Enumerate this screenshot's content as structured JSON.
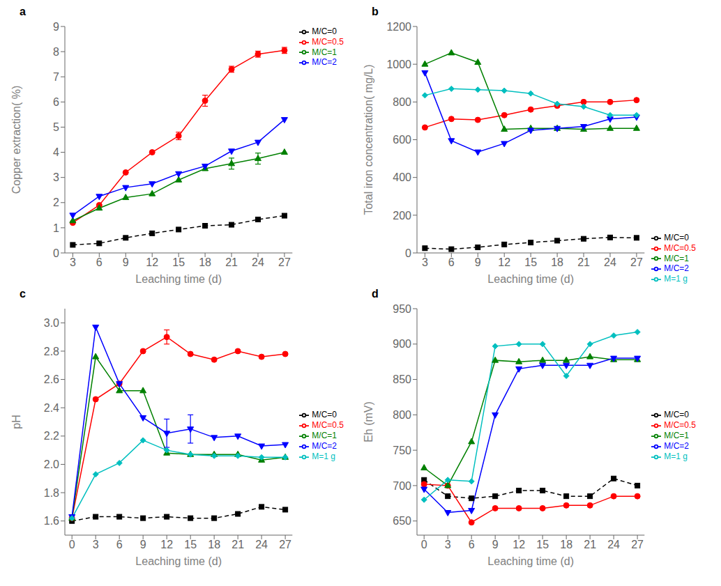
{
  "chart_data": [
    {
      "type": "line",
      "title": "a",
      "xlabel": "Leaching time (d)",
      "ylabel": "Copper extraction( %)",
      "x": [
        3,
        6,
        9,
        12,
        15,
        18,
        21,
        24,
        27
      ],
      "xlim": [
        2.1,
        27.9
      ],
      "xticks": [
        3,
        6,
        9,
        12,
        15,
        18,
        21,
        24,
        27
      ],
      "ylim": [
        0,
        9
      ],
      "yticks": [
        0,
        1,
        2,
        3,
        4,
        5,
        6,
        7,
        8,
        9
      ],
      "legend": "upper left",
      "series": [
        {
          "name": "M/C=0",
          "values": [
            0.32,
            0.38,
            0.6,
            0.78,
            0.93,
            1.08,
            1.12,
            1.33,
            1.48
          ],
          "color": "black",
          "marker": "square",
          "line_style": "dashed"
        },
        {
          "name": "M/C=0.5",
          "values": [
            1.2,
            1.9,
            3.2,
            4.0,
            4.65,
            6.05,
            7.3,
            7.9,
            8.05
          ],
          "error": [
            0,
            0,
            0,
            0,
            0.15,
            0.22,
            0.12,
            0.12,
            0.12
          ],
          "color": "red",
          "marker": "circle",
          "line_style": "solid"
        },
        {
          "name": "M/C=1",
          "values": [
            1.28,
            1.78,
            2.2,
            2.35,
            2.9,
            3.35,
            3.55,
            3.75,
            4.0
          ],
          "error": [
            0,
            0,
            0,
            0,
            0,
            0,
            0.22,
            0.22,
            0
          ],
          "color": "green",
          "marker": "triangle-up",
          "line_style": "solid"
        },
        {
          "name": "M/C=2",
          "values": [
            1.5,
            2.25,
            2.6,
            2.75,
            3.15,
            3.45,
            4.05,
            4.4,
            5.3
          ],
          "color": "blue",
          "marker": "triangle-down",
          "line_style": "solid"
        }
      ]
    },
    {
      "type": "line",
      "title": "b",
      "xlabel": "Leaching time (d)",
      "ylabel": "Total iron concentration( mg/L)",
      "x": [
        3,
        6,
        9,
        12,
        15,
        18,
        21,
        24,
        27
      ],
      "xlim": [
        2.1,
        27.9
      ],
      "xticks": [
        3,
        6,
        9,
        12,
        15,
        18,
        21,
        24,
        27
      ],
      "ylim": [
        0,
        1200
      ],
      "yticks": [
        0,
        200,
        400,
        600,
        800,
        1000,
        1200
      ],
      "legend": "lower right",
      "series": [
        {
          "name": "M/C=0",
          "values": [
            25,
            20,
            30,
            45,
            55,
            65,
            75,
            82,
            80
          ],
          "color": "black",
          "marker": "square",
          "line_style": "dashed"
        },
        {
          "name": "M/C=0.5",
          "values": [
            665,
            710,
            705,
            730,
            760,
            780,
            800,
            800,
            810
          ],
          "color": "red",
          "marker": "circle",
          "line_style": "solid"
        },
        {
          "name": "M/C=1",
          "values": [
            1000,
            1060,
            1010,
            655,
            660,
            660,
            655,
            660,
            660
          ],
          "color": "green",
          "marker": "triangle-up",
          "line_style": "solid"
        },
        {
          "name": "M/C=2",
          "values": [
            955,
            595,
            535,
            580,
            650,
            660,
            670,
            710,
            720
          ],
          "color": "blue",
          "marker": "triangle-down",
          "line_style": "solid"
        },
        {
          "name": "M=1 g",
          "values": [
            835,
            870,
            865,
            860,
            845,
            790,
            775,
            730,
            730
          ],
          "color": "#00BFBF",
          "marker": "diamond",
          "line_style": "solid"
        }
      ]
    },
    {
      "type": "line",
      "title": "c",
      "xlabel": "Leaching time (d)",
      "ylabel": "pH",
      "x": [
        0,
        3,
        6,
        9,
        12,
        15,
        18,
        21,
        24,
        27
      ],
      "xlim": [
        -0.9,
        27.9
      ],
      "xticks": [
        0,
        3,
        6,
        9,
        12,
        15,
        18,
        21,
        24,
        27
      ],
      "ylim": [
        1.5,
        3.1
      ],
      "yticks": [
        1.6,
        1.8,
        {
          "value": 2.0,
          "label": "2.0"
        },
        2.2,
        2.4,
        2.6,
        2.8,
        {
          "value": 3.0,
          "label": "3.0"
        }
      ],
      "legend": "center right",
      "series": [
        {
          "name": "M/C=0",
          "values": [
            1.6,
            1.63,
            1.63,
            1.62,
            1.63,
            1.62,
            1.62,
            1.65,
            1.7,
            1.68
          ],
          "color": "black",
          "marker": "square",
          "line_style": "dashed"
        },
        {
          "name": "M/C=0.5",
          "values": [
            1.62,
            2.46,
            2.57,
            2.8,
            2.9,
            2.78,
            2.74,
            2.8,
            2.76,
            2.78
          ],
          "error": [
            0,
            0,
            0,
            0,
            0.05,
            0,
            0,
            0,
            0,
            0
          ],
          "color": "red",
          "marker": "circle",
          "line_style": "solid"
        },
        {
          "name": "M/C=1",
          "values": [
            1.62,
            2.76,
            2.52,
            2.52,
            2.08,
            2.07,
            2.07,
            2.07,
            2.03,
            2.05
          ],
          "color": "green",
          "marker": "triangle-up",
          "line_style": "solid"
        },
        {
          "name": "M/C=2",
          "values": [
            1.63,
            2.97,
            2.57,
            2.33,
            2.22,
            2.25,
            2.19,
            2.2,
            2.13,
            2.14
          ],
          "error": [
            0,
            0,
            0,
            0,
            0.1,
            0.1,
            0,
            0,
            0,
            0
          ],
          "color": "blue",
          "marker": "triangle-down",
          "line_style": "solid"
        },
        {
          "name": "M=1 g",
          "values": [
            1.62,
            1.93,
            2.01,
            2.17,
            2.1,
            2.07,
            2.06,
            2.06,
            2.05,
            2.05
          ],
          "color": "#00BFBF",
          "marker": "diamond",
          "line_style": "solid"
        }
      ]
    },
    {
      "type": "line",
      "title": "d",
      "xlabel": "Leaching time (d)",
      "ylabel": "Eh (mV)",
      "x": [
        0,
        3,
        6,
        9,
        12,
        15,
        18,
        21,
        24,
        27
      ],
      "xlim": [
        -0.9,
        27.9
      ],
      "xticks": [
        0,
        3,
        6,
        9,
        12,
        15,
        18,
        21,
        24,
        27
      ],
      "ylim": [
        630,
        950
      ],
      "yticks": [
        650,
        700,
        750,
        800,
        850,
        900,
        950
      ],
      "legend": "center right",
      "series": [
        {
          "name": "M/C=0",
          "values": [
            708,
            685,
            682,
            685,
            693,
            693,
            685,
            685,
            710,
            700
          ],
          "color": "black",
          "marker": "square",
          "line_style": "dashed"
        },
        {
          "name": "M/C=0.5",
          "values": [
            702,
            700,
            648,
            668,
            668,
            668,
            672,
            672,
            685,
            685
          ],
          "error": [
            0,
            0,
            0,
            0,
            0.5,
            0.5,
            0.5,
            0,
            0.5,
            0.5
          ],
          "color": "red",
          "marker": "circle",
          "line_style": "solid"
        },
        {
          "name": "M/C=1",
          "values": [
            725,
            700,
            762,
            877,
            875,
            877,
            877,
            882,
            878,
            878
          ],
          "color": "green",
          "marker": "triangle-up",
          "line_style": "solid"
        },
        {
          "name": "M/C=2",
          "values": [
            695,
            662,
            665,
            800,
            865,
            870,
            870,
            870,
            880,
            880
          ],
          "color": "blue",
          "marker": "triangle-down",
          "line_style": "solid"
        },
        {
          "name": "M=1 g",
          "values": [
            680,
            708,
            706,
            897,
            900,
            900,
            855,
            900,
            912,
            917
          ],
          "color": "#00BFBF",
          "marker": "diamond",
          "line_style": "solid"
        }
      ]
    }
  ]
}
